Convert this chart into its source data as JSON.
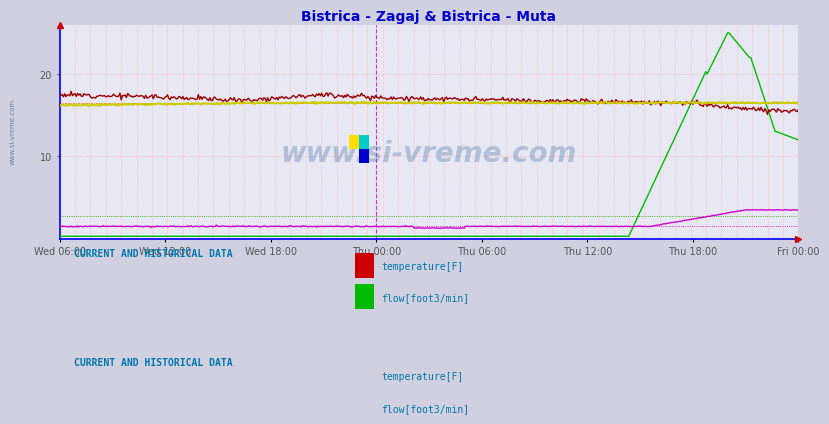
{
  "title": "Bistrica - Zagaj & Bistrica - Muta",
  "title_color": "#0000cc",
  "title_fontsize": 10,
  "fig_bg_color": "#d0d0e0",
  "plot_bg_color": "#e8e8f4",
  "xlabel_ticks": [
    "Wed 06:00",
    "Wed 12:00",
    "Wed 18:00",
    "Thu 00:00",
    "Thu 06:00",
    "Thu 12:00",
    "Thu 18:00",
    "Fri 00:00"
  ],
  "yticks": [
    10,
    20
  ],
  "ymin": 0,
  "ymax": 26,
  "watermark": "www.si-vreme.com",
  "watermark_color": "#336699",
  "legend1_label1": "temperature[F]",
  "legend1_label2": "flow[foot3/min]",
  "legend2_label1": "temperature[F]",
  "legend2_label2": "flow[foot3/min]",
  "legend1_color1": "#cc0000",
  "legend1_color2": "#00bb00",
  "legend2_color1": "#cccc00",
  "legend2_color2": "#cc00cc",
  "section_label": "CURRENT AND HISTORICAL DATA",
  "text_color": "#0077aa",
  "grid_color": "#ffaaaa",
  "axis_color": "#0000ff",
  "num_points": 576,
  "temp1_ref": 16.5,
  "temp2_ref": 16.5,
  "flow1_ref": 2.8,
  "flow2_ref": 1.5
}
